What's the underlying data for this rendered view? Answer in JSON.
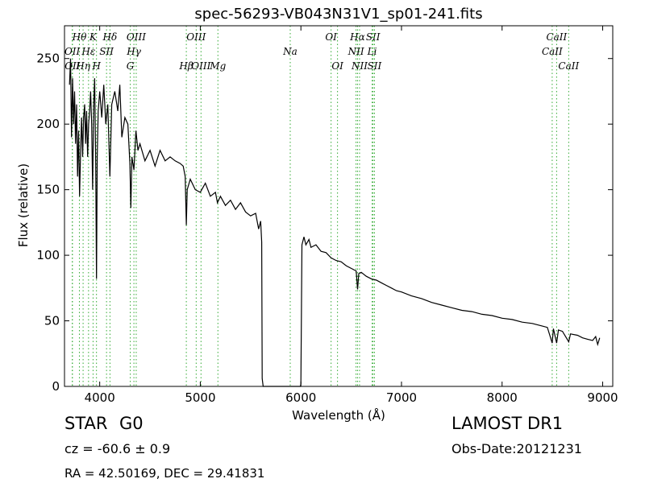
{
  "chart_data": {
    "type": "line",
    "title": "spec-56293-VB043N31V1_sp01-241.fits",
    "xlabel": "Wavelength (Å)",
    "ylabel": "Flux (relative)",
    "xlim": [
      3650,
      9100
    ],
    "ylim": [
      0,
      275
    ],
    "xticks": [
      4000,
      5000,
      6000,
      7000,
      8000,
      9000
    ],
    "yticks": [
      0,
      50,
      100,
      150,
      200,
      250
    ],
    "grid": false,
    "colors": {
      "spectrum": "#000000",
      "line_markers": "#33aa33"
    },
    "series": [
      {
        "values": [
          [
            3700,
            230
          ],
          [
            3710,
            250
          ],
          [
            3720,
            190
          ],
          [
            3730,
            235
          ],
          [
            3740,
            200
          ],
          [
            3750,
            225
          ],
          [
            3760,
            185
          ],
          [
            3770,
            215
          ],
          [
            3780,
            160
          ],
          [
            3790,
            195
          ],
          [
            3800,
            145
          ],
          [
            3810,
            180
          ],
          [
            3820,
            205
          ],
          [
            3830,
            175
          ],
          [
            3840,
            205
          ],
          [
            3850,
            215
          ],
          [
            3860,
            185
          ],
          [
            3870,
            210
          ],
          [
            3880,
            175
          ],
          [
            3890,
            200
          ],
          [
            3900,
            210
          ],
          [
            3910,
            225
          ],
          [
            3920,
            200
          ],
          [
            3930,
            150
          ],
          [
            3940,
            215
          ],
          [
            3950,
            235
          ],
          [
            3960,
            170
          ],
          [
            3968,
            82
          ],
          [
            3975,
            175
          ],
          [
            3985,
            210
          ],
          [
            4000,
            225
          ],
          [
            4020,
            205
          ],
          [
            4040,
            230
          ],
          [
            4060,
            200
          ],
          [
            4080,
            215
          ],
          [
            4101,
            160
          ],
          [
            4120,
            215
          ],
          [
            4150,
            225
          ],
          [
            4180,
            210
          ],
          [
            4200,
            230
          ],
          [
            4220,
            190
          ],
          [
            4250,
            205
          ],
          [
            4280,
            200
          ],
          [
            4300,
            170
          ],
          [
            4310,
            136
          ],
          [
            4320,
            175
          ],
          [
            4340,
            165
          ],
          [
            4360,
            195
          ],
          [
            4380,
            180
          ],
          [
            4400,
            185
          ],
          [
            4450,
            172
          ],
          [
            4500,
            180
          ],
          [
            4550,
            168
          ],
          [
            4600,
            180
          ],
          [
            4650,
            172
          ],
          [
            4700,
            175
          ],
          [
            4750,
            172
          ],
          [
            4800,
            170
          ],
          [
            4830,
            168
          ],
          [
            4850,
            160
          ],
          [
            4861,
            123
          ],
          [
            4870,
            150
          ],
          [
            4900,
            158
          ],
          [
            4950,
            150
          ],
          [
            5000,
            148
          ],
          [
            5050,
            155
          ],
          [
            5100,
            145
          ],
          [
            5150,
            148
          ],
          [
            5170,
            140
          ],
          [
            5200,
            145
          ],
          [
            5250,
            138
          ],
          [
            5300,
            142
          ],
          [
            5350,
            135
          ],
          [
            5400,
            140
          ],
          [
            5450,
            133
          ],
          [
            5500,
            130
          ],
          [
            5550,
            132
          ],
          [
            5580,
            120
          ],
          [
            5600,
            126
          ],
          [
            5610,
            110
          ],
          [
            5615,
            6
          ],
          [
            5625,
            0
          ],
          [
            5700,
            0
          ],
          [
            5800,
            0
          ],
          [
            5900,
            0
          ],
          [
            5995,
            0
          ],
          [
            6000,
            2
          ],
          [
            6010,
            108
          ],
          [
            6030,
            114
          ],
          [
            6050,
            108
          ],
          [
            6080,
            112
          ],
          [
            6100,
            106
          ],
          [
            6150,
            108
          ],
          [
            6200,
            103
          ],
          [
            6250,
            102
          ],
          [
            6300,
            98
          ],
          [
            6350,
            96
          ],
          [
            6400,
            95
          ],
          [
            6450,
            92
          ],
          [
            6500,
            90
          ],
          [
            6550,
            88
          ],
          [
            6563,
            74
          ],
          [
            6575,
            86
          ],
          [
            6600,
            87
          ],
          [
            6650,
            84
          ],
          [
            6700,
            82
          ],
          [
            6750,
            81
          ],
          [
            6800,
            79
          ],
          [
            6850,
            77
          ],
          [
            6900,
            75
          ],
          [
            6950,
            73
          ],
          [
            7000,
            72
          ],
          [
            7100,
            69
          ],
          [
            7200,
            67
          ],
          [
            7300,
            64
          ],
          [
            7400,
            62
          ],
          [
            7500,
            60
          ],
          [
            7600,
            58
          ],
          [
            7700,
            57
          ],
          [
            7800,
            55
          ],
          [
            7900,
            54
          ],
          [
            8000,
            52
          ],
          [
            8100,
            51
          ],
          [
            8200,
            49
          ],
          [
            8300,
            48
          ],
          [
            8400,
            46
          ],
          [
            8450,
            45
          ],
          [
            8498,
            33
          ],
          [
            8510,
            44
          ],
          [
            8542,
            33
          ],
          [
            8560,
            43
          ],
          [
            8600,
            42
          ],
          [
            8662,
            34
          ],
          [
            8680,
            40
          ],
          [
            8750,
            39
          ],
          [
            8800,
            37
          ],
          [
            8850,
            36
          ],
          [
            8900,
            35
          ],
          [
            8930,
            38
          ],
          [
            8950,
            32
          ],
          [
            8970,
            37
          ]
        ]
      }
    ],
    "line_markers": [
      {
        "name": "Hθ",
        "x": 3798,
        "row": 1
      },
      {
        "name": "K",
        "x": 3934,
        "row": 1
      },
      {
        "name": "Hδ",
        "x": 4102,
        "row": 1
      },
      {
        "name": "OIII",
        "x": 4363,
        "row": 1
      },
      {
        "name": "OIII",
        "x": 4959,
        "row": 1
      },
      {
        "name": "OI",
        "x": 6300,
        "row": 1
      },
      {
        "name": "Hα",
        "x": 6563,
        "row": 1
      },
      {
        "name": "SII",
        "x": 6717,
        "row": 1
      },
      {
        "name": "CaII",
        "x": 8542,
        "row": 1
      },
      {
        "name": "OII",
        "x": 3727,
        "row": 2
      },
      {
        "name": "Hε",
        "x": 3889,
        "row": 2
      },
      {
        "name": "SII",
        "x": 4068,
        "row": 2
      },
      {
        "name": "Hγ",
        "x": 4340,
        "row": 2
      },
      {
        "name": "NII",
        "x": 6548,
        "row": 2
      },
      {
        "name": "Li",
        "x": 6708,
        "row": 2
      },
      {
        "name": "CaII",
        "x": 8498,
        "row": 2
      },
      {
        "name": "OII",
        "x": 3729,
        "row": 3
      },
      {
        "name": "Hη",
        "x": 3835,
        "row": 3
      },
      {
        "name": "H",
        "x": 3968,
        "row": 3
      },
      {
        "name": "G",
        "x": 4304,
        "row": 3
      },
      {
        "name": "Hβ",
        "x": 4861,
        "row": 3
      },
      {
        "name": "OIII",
        "x": 5007,
        "row": 3
      },
      {
        "name": "Mg",
        "x": 5175,
        "row": 3
      },
      {
        "name": "Na",
        "x": 5894,
        "row": 2
      },
      {
        "name": "OI",
        "x": 6364,
        "row": 3
      },
      {
        "name": "NII",
        "x": 6583,
        "row": 3
      },
      {
        "name": "SII",
        "x": 6731,
        "row": 3
      },
      {
        "name": "CaII",
        "x": 8662,
        "row": 3
      }
    ]
  },
  "info": {
    "object_class": "STAR",
    "subclass": "G0",
    "redshift": "cz = -60.6 ± 0.9",
    "coords": "RA = 42.50169, DEC = 29.41831",
    "survey": "LAMOST DR1",
    "obs_date": "Obs-Date:20121231"
  }
}
